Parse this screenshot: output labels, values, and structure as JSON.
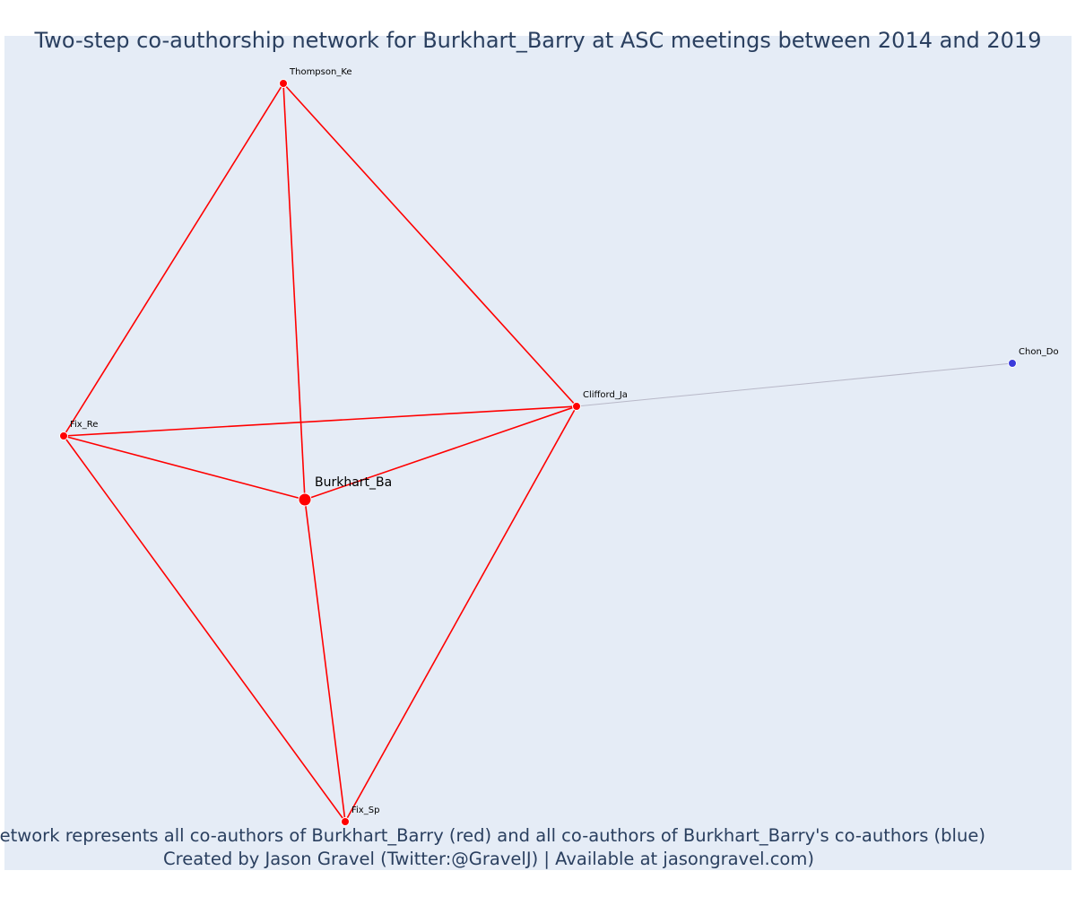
{
  "title": "Two-step co-authorship network for Burkhart_Barry at ASC meetings between 2014 and 2019",
  "caption": {
    "line1": "Network represents all co-authors of Burkhart_Barry (red) and all co-authors of Burkhart_Barry's co-authors (blue)",
    "line2": "Created by Jason Gravel (Twitter:@GravelJ) | Available at jasongravel.com)"
  },
  "colors": {
    "background": "#e5ecf6",
    "direct": "#ff0000",
    "second_step": "#3b3bdb",
    "second_step_edge": "#b8b8c8",
    "text": "#2a3f5f"
  },
  "chart_data": {
    "type": "network",
    "nodes": [
      {
        "id": "Burkhart_Ba",
        "label": "Burkhart_Ba",
        "group": "ego"
      },
      {
        "id": "Thompson_Ke",
        "label": "Thompson_Ke",
        "group": "co-author"
      },
      {
        "id": "Fix_Re",
        "label": "Fix_Re",
        "group": "co-author"
      },
      {
        "id": "Clifford_Ja",
        "label": "Clifford_Ja",
        "group": "co-author"
      },
      {
        "id": "Fix_Sp",
        "label": "Fix_Sp",
        "group": "co-author"
      },
      {
        "id": "Chon_Do",
        "label": "Chon_Do",
        "group": "co-author-of-co-author"
      }
    ],
    "edges": [
      {
        "source": "Thompson_Ke",
        "target": "Fix_Re",
        "group": "direct"
      },
      {
        "source": "Thompson_Ke",
        "target": "Clifford_Ja",
        "group": "direct"
      },
      {
        "source": "Thompson_Ke",
        "target": "Burkhart_Ba",
        "group": "direct"
      },
      {
        "source": "Fix_Re",
        "target": "Clifford_Ja",
        "group": "direct"
      },
      {
        "source": "Fix_Re",
        "target": "Burkhart_Ba",
        "group": "direct"
      },
      {
        "source": "Fix_Re",
        "target": "Fix_Sp",
        "group": "direct"
      },
      {
        "source": "Burkhart_Ba",
        "target": "Clifford_Ja",
        "group": "direct"
      },
      {
        "source": "Burkhart_Ba",
        "target": "Fix_Sp",
        "group": "direct"
      },
      {
        "source": "Clifford_Ja",
        "target": "Fix_Sp",
        "group": "direct"
      },
      {
        "source": "Clifford_Ja",
        "target": "Chon_Do",
        "group": "second_step"
      }
    ]
  }
}
